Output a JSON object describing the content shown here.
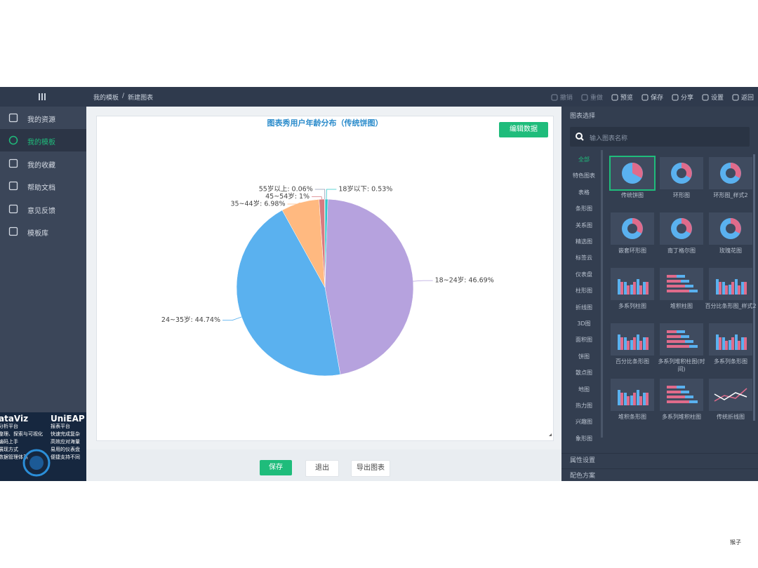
{
  "topbar": {
    "breadcrumb": [
      "我的模板",
      "/",
      "新建图表"
    ],
    "actions": [
      "撤销",
      "重做",
      "预览",
      "保存",
      "分享",
      "设置",
      "返回"
    ]
  },
  "sidebar": {
    "items": [
      "我的资源",
      "我的模板",
      "我的收藏",
      "帮助文档",
      "意见反馈",
      "模板库"
    ],
    "ad_left": [
      "ataViz",
      "分析平台",
      "整理、探索与可视化",
      "编码上手",
      "展现方式",
      "数据管理体系"
    ],
    "ad_right": [
      "UniEAP",
      "报表平台",
      "快速完成复杂",
      "高效应对海量",
      "易用的仪表盘",
      "便捷支持不同"
    ]
  },
  "edit_button": "编辑数据",
  "chart_data": {
    "type": "pie",
    "title": "图表秀用户年龄分布（传统饼图）",
    "categories": [
      "18岁以下",
      "18~24岁",
      "24~35岁",
      "35~44岁",
      "45~54岁",
      "55岁以上"
    ],
    "values": [
      0.53,
      46.69,
      44.74,
      6.98,
      1,
      0.06
    ],
    "value_labels": [
      "18岁以下: 0.53%",
      "18~24岁: 46.69%",
      "24~35岁: 44.74%",
      "35~44岁: 6.98%",
      "45~54岁: 1%",
      "55岁以上: 0.06%"
    ],
    "colors": [
      "#2ec7c9",
      "#b6a2de",
      "#5ab1ef",
      "#ffb980",
      "#d87a80",
      "#8d98b3"
    ]
  },
  "footer_buttons": [
    "保存",
    "退出",
    "导出图表"
  ],
  "right_panel": {
    "title": "图表选择",
    "search_placeholder": "输入图表名称",
    "categories": [
      "全部",
      "特色图表",
      "表格",
      "条形图",
      "关系图",
      "精选图",
      "标签云",
      "仪表盘",
      "柱形图",
      "折线图",
      "3D图",
      "面积图",
      "饼图",
      "散点图",
      "地图",
      "热力图",
      "兴趣图",
      "象形图"
    ],
    "thumbnails": [
      "传统饼图",
      "环形图",
      "环形图_样式2",
      "嵌套环形图",
      "南丁格尔图",
      "玫瑰花图",
      "多系列柱图",
      "堆积柱图",
      "百分比条形图_样式2",
      "百分比条形图",
      "多系列堆积柱图(时间)",
      "多系列条形图",
      "堆积条形图",
      "多系列堆积柱图",
      "传统折线图"
    ],
    "sections": [
      "属性设置",
      "配色方案"
    ]
  },
  "watermark": "猴子"
}
